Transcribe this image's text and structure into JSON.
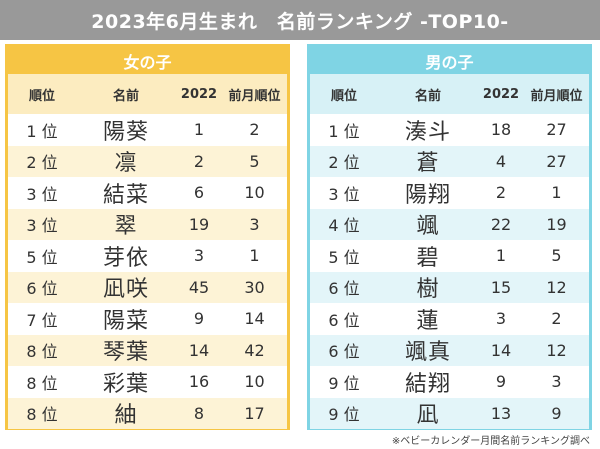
{
  "title": "2023年6月生まれ　名前ランキング -TOP10-",
  "columns": {
    "rank": "順位",
    "name": "名前",
    "year": "2022",
    "prev": "前月順位"
  },
  "girls": {
    "label": "女の子",
    "rows": [
      {
        "rank": "1 位",
        "name": "陽葵",
        "y2022": "1",
        "prev": "2"
      },
      {
        "rank": "2 位",
        "name": "凛",
        "y2022": "2",
        "prev": "5"
      },
      {
        "rank": "3 位",
        "name": "結菜",
        "y2022": "6",
        "prev": "10"
      },
      {
        "rank": "3 位",
        "name": "翠",
        "y2022": "19",
        "prev": "3"
      },
      {
        "rank": "5 位",
        "name": "芽依",
        "y2022": "3",
        "prev": "1"
      },
      {
        "rank": "6 位",
        "name": "凪咲",
        "y2022": "45",
        "prev": "30"
      },
      {
        "rank": "7 位",
        "name": "陽菜",
        "y2022": "9",
        "prev": "14"
      },
      {
        "rank": "8 位",
        "name": "琴葉",
        "y2022": "14",
        "prev": "42"
      },
      {
        "rank": "8 位",
        "name": "彩葉",
        "y2022": "16",
        "prev": "10"
      },
      {
        "rank": "8 位",
        "name": "紬",
        "y2022": "8",
        "prev": "17"
      }
    ]
  },
  "boys": {
    "label": "男の子",
    "rows": [
      {
        "rank": "1 位",
        "name": "湊斗",
        "y2022": "18",
        "prev": "27"
      },
      {
        "rank": "2 位",
        "name": "蒼",
        "y2022": "4",
        "prev": "27"
      },
      {
        "rank": "3 位",
        "name": "陽翔",
        "y2022": "2",
        "prev": "1"
      },
      {
        "rank": "4 位",
        "name": "颯",
        "y2022": "22",
        "prev": "19"
      },
      {
        "rank": "5 位",
        "name": "碧",
        "y2022": "1",
        "prev": "5"
      },
      {
        "rank": "6 位",
        "name": "樹",
        "y2022": "15",
        "prev": "12"
      },
      {
        "rank": "6 位",
        "name": "蓮",
        "y2022": "3",
        "prev": "2"
      },
      {
        "rank": "6 位",
        "name": "颯真",
        "y2022": "14",
        "prev": "12"
      },
      {
        "rank": "9 位",
        "name": "結翔",
        "y2022": "9",
        "prev": "3"
      },
      {
        "rank": "9 位",
        "name": "凪",
        "y2022": "13",
        "prev": "9"
      }
    ]
  },
  "footnote": "※ベビーカレンダー月間名前ランキング調べ",
  "colors": {
    "title_bg": "#999999",
    "girls_accent": "#f6c544",
    "boys_accent": "#7fd4e4"
  }
}
